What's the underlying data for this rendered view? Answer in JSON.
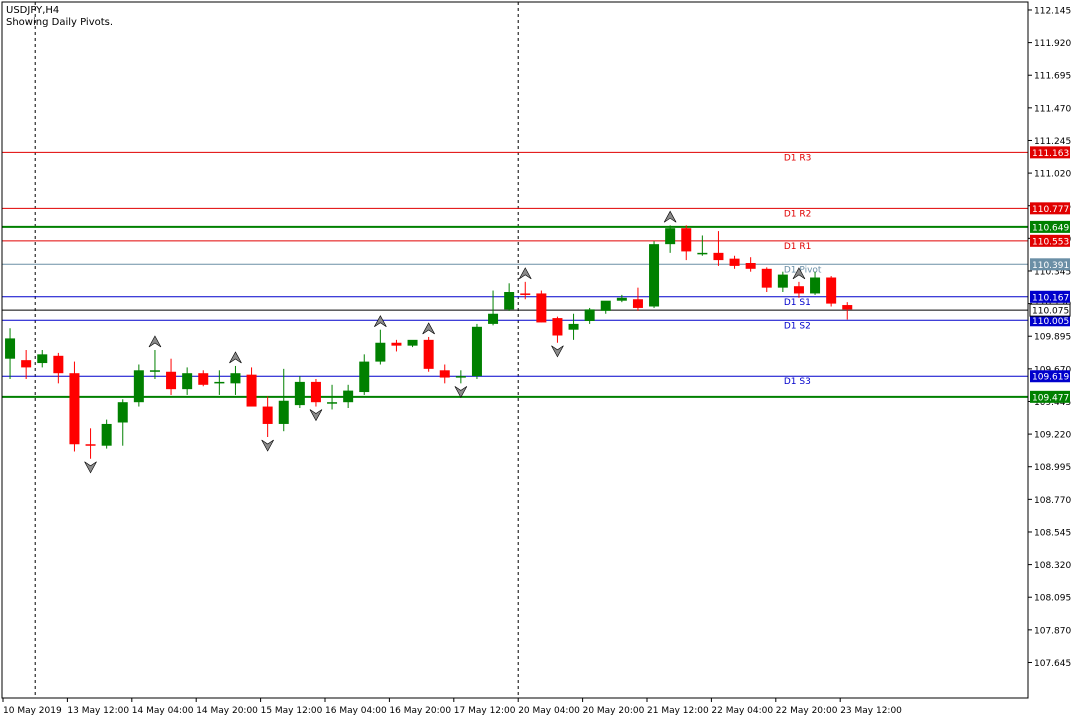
{
  "header": {
    "symbol_label": "USDJPY,H4",
    "subtitle": "Showing Daily Pivots."
  },
  "colors": {
    "bull": "#008000",
    "bear": "#ff0000",
    "resistance": "#e00000",
    "support": "#0000cc",
    "pivot": "#6b8fa6",
    "green_level": "#008000",
    "price_line": "#000000"
  },
  "chart_data": {
    "type": "candlestick",
    "title": "USDJPY,H4",
    "subtitle": "Showing Daily Pivots.",
    "ylim": [
      107.4,
      112.2
    ],
    "y_ticks": [
      "112.145",
      "111.920",
      "111.695",
      "111.470",
      "111.245",
      "111.020",
      "110.795",
      "110.570",
      "110.345",
      "110.120",
      "109.895",
      "109.670",
      "109.445",
      "109.220",
      "108.995",
      "108.770",
      "108.545",
      "108.320",
      "108.095",
      "107.870",
      "107.645"
    ],
    "x_tick_labels": [
      {
        "i": 0,
        "label": "10 May 2019"
      },
      {
        "i": 4,
        "label": "13 May 12:00"
      },
      {
        "i": 8,
        "label": "14 May 04:00"
      },
      {
        "i": 12,
        "label": "14 May 20:00"
      },
      {
        "i": 16,
        "label": "15 May 12:00"
      },
      {
        "i": 20,
        "label": "16 May 04:00"
      },
      {
        "i": 24,
        "label": "16 May 20:00"
      },
      {
        "i": 28,
        "label": "17 May 12:00"
      },
      {
        "i": 32,
        "label": "20 May 04:00"
      },
      {
        "i": 36,
        "label": "20 May 20:00"
      },
      {
        "i": 40,
        "label": "21 May 12:00"
      },
      {
        "i": 44,
        "label": "22 May 04:00"
      },
      {
        "i": 48,
        "label": "22 May 20:00"
      },
      {
        "i": 52,
        "label": "23 May 12:00"
      }
    ],
    "period_separators": [
      1,
      31
    ],
    "candles": [
      {
        "o": 109.74,
        "h": 109.95,
        "l": 109.6,
        "c": 109.88
      },
      {
        "o": 109.73,
        "h": 109.8,
        "l": 109.6,
        "c": 109.68
      },
      {
        "o": 109.71,
        "h": 109.8,
        "l": 109.68,
        "c": 109.77
      },
      {
        "o": 109.76,
        "h": 109.78,
        "l": 109.57,
        "c": 109.64
      },
      {
        "o": 109.64,
        "h": 109.72,
        "l": 109.1,
        "c": 109.15
      },
      {
        "o": 109.15,
        "h": 109.26,
        "l": 109.05,
        "c": 109.14
      },
      {
        "o": 109.14,
        "h": 109.32,
        "l": 109.12,
        "c": 109.29
      },
      {
        "o": 109.3,
        "h": 109.46,
        "l": 109.14,
        "c": 109.44
      },
      {
        "o": 109.44,
        "h": 109.7,
        "l": 109.41,
        "c": 109.66
      },
      {
        "o": 109.65,
        "h": 109.8,
        "l": 109.6,
        "c": 109.66
      },
      {
        "o": 109.65,
        "h": 109.74,
        "l": 109.49,
        "c": 109.53
      },
      {
        "o": 109.53,
        "h": 109.68,
        "l": 109.49,
        "c": 109.64
      },
      {
        "o": 109.64,
        "h": 109.66,
        "l": 109.55,
        "c": 109.56
      },
      {
        "o": 109.58,
        "h": 109.66,
        "l": 109.49,
        "c": 109.58
      },
      {
        "o": 109.57,
        "h": 109.69,
        "l": 109.49,
        "c": 109.64
      },
      {
        "o": 109.63,
        "h": 109.68,
        "l": 109.42,
        "c": 109.41
      },
      {
        "o": 109.41,
        "h": 109.48,
        "l": 109.2,
        "c": 109.29
      },
      {
        "o": 109.29,
        "h": 109.67,
        "l": 109.24,
        "c": 109.45
      },
      {
        "o": 109.42,
        "h": 109.62,
        "l": 109.4,
        "c": 109.58
      },
      {
        "o": 109.58,
        "h": 109.6,
        "l": 109.41,
        "c": 109.44
      },
      {
        "o": 109.44,
        "h": 109.56,
        "l": 109.39,
        "c": 109.44
      },
      {
        "o": 109.44,
        "h": 109.56,
        "l": 109.4,
        "c": 109.52
      },
      {
        "o": 109.51,
        "h": 109.77,
        "l": 109.49,
        "c": 109.72
      },
      {
        "o": 109.72,
        "h": 109.94,
        "l": 109.7,
        "c": 109.85
      },
      {
        "o": 109.85,
        "h": 109.87,
        "l": 109.79,
        "c": 109.83
      },
      {
        "o": 109.83,
        "h": 109.86,
        "l": 109.82,
        "c": 109.87
      },
      {
        "o": 109.87,
        "h": 109.89,
        "l": 109.65,
        "c": 109.67
      },
      {
        "o": 109.66,
        "h": 109.7,
        "l": 109.57,
        "c": 109.61
      },
      {
        "o": 109.61,
        "h": 109.66,
        "l": 109.57,
        "c": 109.62
      },
      {
        "o": 109.62,
        "h": 109.98,
        "l": 109.6,
        "c": 109.96
      },
      {
        "o": 109.98,
        "h": 110.21,
        "l": 109.97,
        "c": 110.05
      },
      {
        "o": 110.08,
        "h": 110.26,
        "l": 110.07,
        "c": 110.2
      },
      {
        "o": 110.19,
        "h": 110.27,
        "l": 110.15,
        "c": 110.18
      },
      {
        "o": 110.19,
        "h": 110.21,
        "l": 109.99,
        "c": 109.99
      },
      {
        "o": 110.02,
        "h": 110.03,
        "l": 109.85,
        "c": 109.9
      },
      {
        "o": 109.94,
        "h": 110.05,
        "l": 109.87,
        "c": 109.98
      },
      {
        "o": 110.0,
        "h": 110.09,
        "l": 109.98,
        "c": 110.08
      },
      {
        "o": 110.07,
        "h": 110.13,
        "l": 110.05,
        "c": 110.14
      },
      {
        "o": 110.14,
        "h": 110.18,
        "l": 110.13,
        "c": 110.16
      },
      {
        "o": 110.15,
        "h": 110.23,
        "l": 110.07,
        "c": 110.09
      },
      {
        "o": 110.1,
        "h": 110.55,
        "l": 110.09,
        "c": 110.53
      },
      {
        "o": 110.53,
        "h": 110.66,
        "l": 110.47,
        "c": 110.64
      },
      {
        "o": 110.64,
        "h": 110.66,
        "l": 110.42,
        "c": 110.48
      },
      {
        "o": 110.47,
        "h": 110.59,
        "l": 110.45,
        "c": 110.47
      },
      {
        "o": 110.47,
        "h": 110.62,
        "l": 110.38,
        "c": 110.42
      },
      {
        "o": 110.43,
        "h": 110.45,
        "l": 110.36,
        "c": 110.38
      },
      {
        "o": 110.4,
        "h": 110.44,
        "l": 110.34,
        "c": 110.36
      },
      {
        "o": 110.36,
        "h": 110.37,
        "l": 110.2,
        "c": 110.23
      },
      {
        "o": 110.23,
        "h": 110.34,
        "l": 110.2,
        "c": 110.32
      },
      {
        "o": 110.24,
        "h": 110.27,
        "l": 110.16,
        "c": 110.19
      },
      {
        "o": 110.19,
        "h": 110.34,
        "l": 110.18,
        "c": 110.3
      },
      {
        "o": 110.3,
        "h": 110.31,
        "l": 110.1,
        "c": 110.12
      },
      {
        "o": 110.11,
        "h": 110.13,
        "l": 110.01,
        "c": 110.08
      }
    ],
    "fractals": [
      {
        "i": 5,
        "type": "down"
      },
      {
        "i": 9,
        "type": "up"
      },
      {
        "i": 14,
        "type": "up"
      },
      {
        "i": 16,
        "type": "down"
      },
      {
        "i": 19,
        "type": "down"
      },
      {
        "i": 23,
        "type": "up"
      },
      {
        "i": 26,
        "type": "up"
      },
      {
        "i": 28,
        "type": "down"
      },
      {
        "i": 32,
        "type": "up"
      },
      {
        "i": 34,
        "type": "down"
      },
      {
        "i": 41,
        "type": "up"
      },
      {
        "i": 49,
        "type": "up"
      }
    ],
    "pivot_levels": [
      {
        "name": "D1 R3",
        "value": 111.163,
        "label": "111.163",
        "kind": "resistance",
        "label_i": 48
      },
      {
        "name": "D1 R2",
        "value": 110.777,
        "label": "110.777",
        "kind": "resistance",
        "label_i": 48
      },
      {
        "name": "D1 R1",
        "value": 110.553,
        "label": "110.553",
        "kind": "resistance",
        "label_i": 48
      },
      {
        "name": "D1 Pivot",
        "value": 110.391,
        "label": "110.391",
        "kind": "pivot",
        "label_i": 48
      },
      {
        "name": "D1 S1",
        "value": 110.167,
        "label": "110.167",
        "kind": "support",
        "label_i": 48
      },
      {
        "name": "D1 S2",
        "value": 110.005,
        "label": "110.005",
        "kind": "support",
        "label_i": 48
      },
      {
        "name": "D1 S3",
        "value": 109.619,
        "label": "109.619",
        "kind": "support",
        "label_i": 48
      }
    ],
    "horizontal_levels": [
      {
        "value": 110.649,
        "label": "110.649"
      },
      {
        "value": 109.477,
        "label": "109.477"
      }
    ],
    "current_price": {
      "value": 110.075,
      "label": "110.075"
    }
  }
}
